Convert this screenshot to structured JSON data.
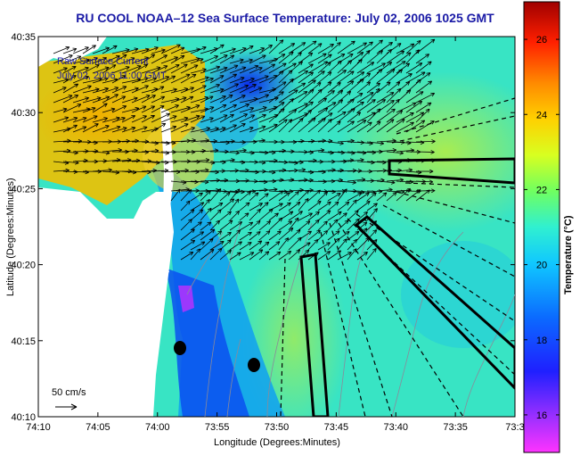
{
  "title": "RU COOL  NOAA–12  Sea Surface Temperature:  July 02, 2006 1025 GMT",
  "legend": {
    "line1": "Raw Surface Current",
    "line2": "July 02, 2006 11:00 GMT",
    "scale_label": "50 cm/s"
  },
  "axes": {
    "xlabel": "Longitude (Degrees:Minutes)",
    "ylabel": "Latitude (Degrees:Minutes)",
    "xticks": [
      "74:10",
      "74:05",
      "74:00",
      "73:55",
      "73:50",
      "73:45",
      "73:40",
      "73:35",
      "73:3"
    ],
    "yticks": [
      "40:35",
      "40:30",
      "40:25",
      "40:20",
      "40:15",
      "40:10"
    ]
  },
  "colorbar": {
    "label": "Temperature (°C)",
    "ticks": [
      "26",
      "24",
      "22",
      "20",
      "18",
      "16"
    ],
    "range": [
      15,
      27
    ]
  },
  "colors": {
    "title": "#1a1aa6",
    "land": "#ffffff",
    "ocean_warm": "#f2c400",
    "ocean_mid": "#30e0c8",
    "ocean_cool": "#0a3cf0"
  }
}
